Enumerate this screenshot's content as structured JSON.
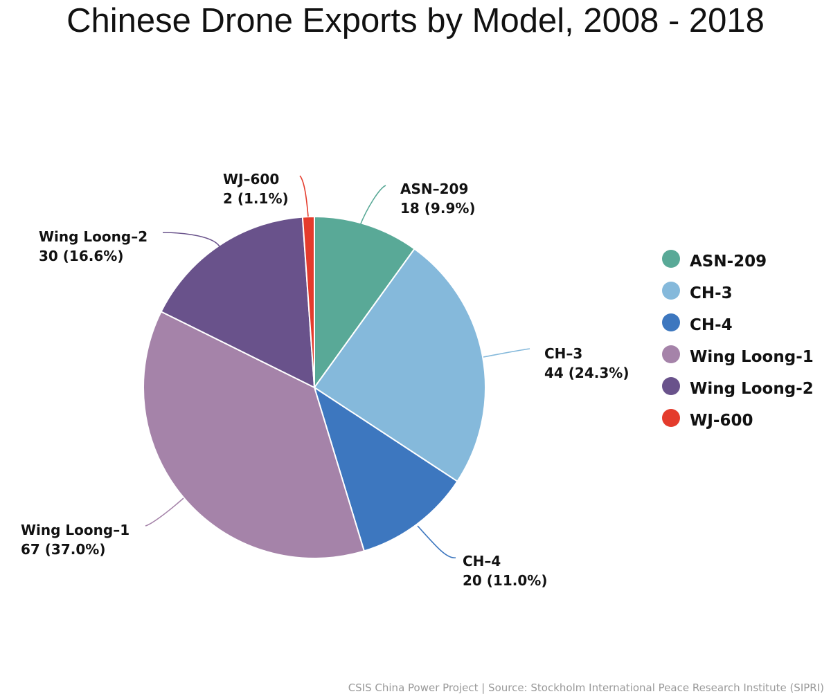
{
  "chart_data": {
    "type": "pie",
    "title": "Chinese Drone Exports by Model, 2008 - 2018",
    "source": "CSIS China Power Project | Source: Stockholm International Peace Research Institute (SIPRI)",
    "legend_position": "right",
    "slices": [
      {
        "name": "ASN-209",
        "label_name": "ASN–209",
        "value": 18,
        "percent_label": "18 (9.9%)",
        "color": "#59a997"
      },
      {
        "name": "CH-3",
        "label_name": "CH–3",
        "value": 44,
        "percent_label": "44 (24.3%)",
        "color": "#85b9db"
      },
      {
        "name": "CH-4",
        "label_name": "CH–4",
        "value": 20,
        "percent_label": "20 (11.0%)",
        "color": "#3d77bf"
      },
      {
        "name": "Wing Loong-1",
        "label_name": "Wing Loong–1",
        "value": 67,
        "percent_label": "67 (37.0%)",
        "color": "#a583a9"
      },
      {
        "name": "Wing Loong-2",
        "label_name": "Wing Loong–2",
        "value": 30,
        "percent_label": "30 (16.6%)",
        "color": "#69528b"
      },
      {
        "name": "WJ-600",
        "label_name": "WJ–600",
        "value": 2,
        "percent_label": "2 (1.1%)",
        "color": "#e43b2c"
      }
    ]
  }
}
